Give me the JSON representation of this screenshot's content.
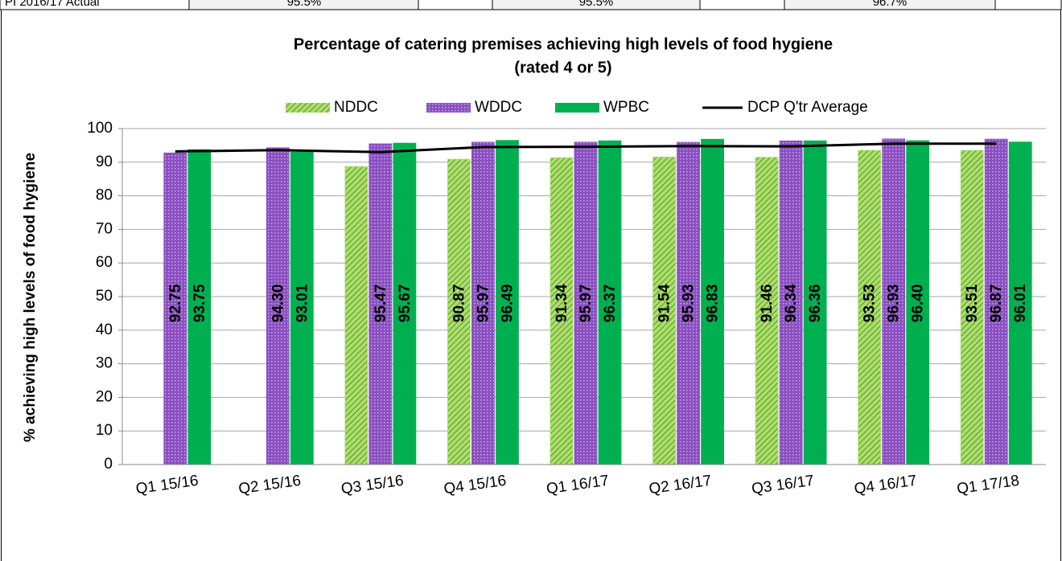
{
  "table_row": [
    "PI 2016/17 Actual",
    "95.5%",
    "95.5%",
    "96.7%"
  ],
  "chart_data": {
    "type": "bar",
    "title": [
      "Percentage of catering premises achieving high levels of food hygiene",
      "(rated 4 or 5)"
    ],
    "y_label": "% achieving high levels of food hygiene",
    "categories": [
      "Q1 15/16",
      "Q2 15/16",
      "Q3 15/16",
      "Q4 15/16",
      "Q1 16/17",
      "Q2 16/17",
      "Q3 16/17",
      "Q4 16/17",
      "Q1 17/18"
    ],
    "series": [
      {
        "name": "NDDC",
        "color": "#a9e06a",
        "label_color": "#000000",
        "values": [
          null,
          null,
          88.7,
          90.87,
          91.34,
          91.54,
          91.46,
          93.53,
          93.51
        ],
        "value_labels": [
          null,
          null,
          null,
          "90.87",
          "91.34",
          "91.54",
          "91.46",
          "93.53",
          "93.51"
        ]
      },
      {
        "name": "WDDC",
        "color": "#8a4fc0",
        "label_color": "#ffffff",
        "values": [
          92.75,
          94.3,
          95.47,
          95.97,
          95.97,
          95.93,
          96.34,
          96.93,
          96.87
        ],
        "value_labels": [
          "92.75",
          "94.30",
          "95.47",
          "95.97",
          "95.97",
          "95.93",
          "96.34",
          "96.93",
          "96.87"
        ]
      },
      {
        "name": "WPBC",
        "color": "#00b050",
        "label_color": "#ffffff",
        "values": [
          93.75,
          93.01,
          95.67,
          96.49,
          96.37,
          96.83,
          96.36,
          96.4,
          96.01
        ],
        "value_labels": [
          "93.75",
          "93.01",
          "95.67",
          "96.49",
          "96.37",
          "96.83",
          "96.36",
          "96.40",
          "96.01"
        ]
      },
      {
        "name": "DCP Q'tr Average",
        "type": "line",
        "color": "#000000",
        "values": [
          93.2,
          93.6,
          93.0,
          94.5,
          94.6,
          94.8,
          94.7,
          95.5,
          95.5
        ]
      }
    ],
    "ylim": [
      0,
      100
    ],
    "yticks": [
      0,
      10,
      20,
      30,
      40,
      50,
      60,
      70,
      80,
      90,
      100
    ],
    "grid": true,
    "legend": "top"
  }
}
